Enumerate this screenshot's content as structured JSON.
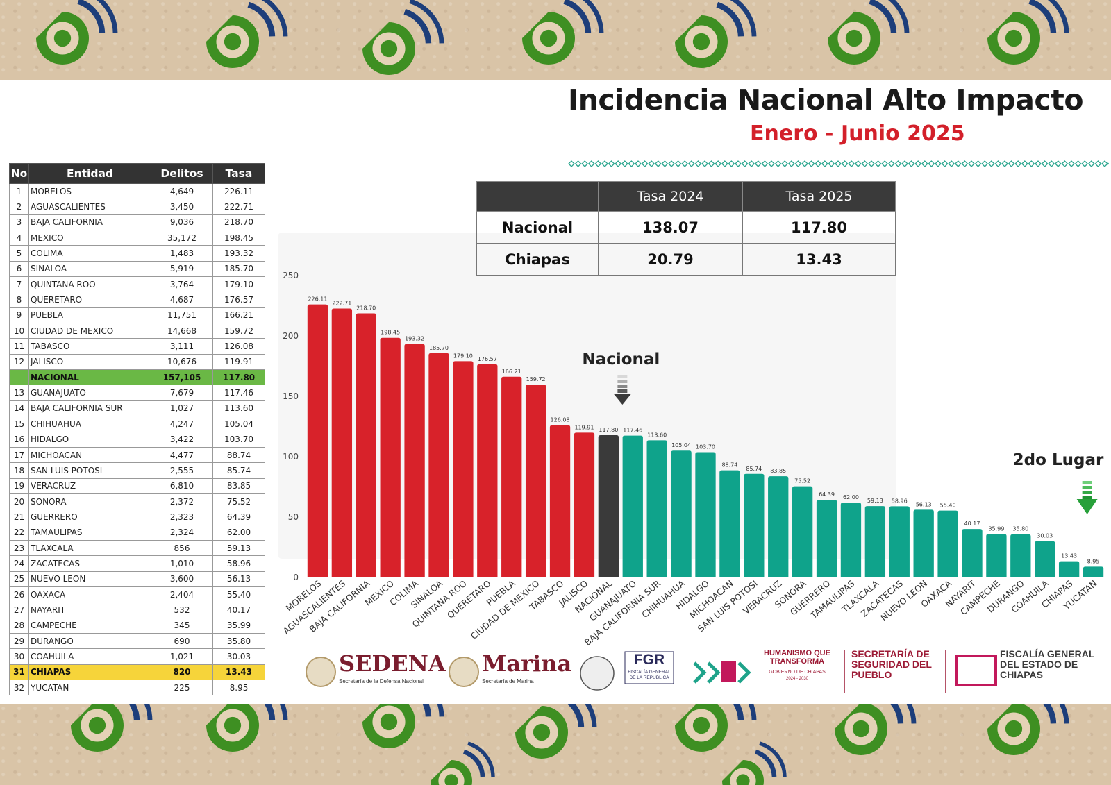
{
  "header": {
    "title": "Incidencia Nacional Alto Impacto",
    "subtitle": "Enero - Junio 2025"
  },
  "ranking_table": {
    "headers": [
      "No",
      "Entidad",
      "Delitos",
      "Tasa"
    ],
    "rows": [
      {
        "no": "1",
        "entidad": "MORELOS",
        "delitos": "4,649",
        "tasa": "226.11"
      },
      {
        "no": "2",
        "entidad": "AGUASCALIENTES",
        "delitos": "3,450",
        "tasa": "222.71"
      },
      {
        "no": "3",
        "entidad": "BAJA CALIFORNIA",
        "delitos": "9,036",
        "tasa": "218.70"
      },
      {
        "no": "4",
        "entidad": "MEXICO",
        "delitos": "35,172",
        "tasa": "198.45"
      },
      {
        "no": "5",
        "entidad": "COLIMA",
        "delitos": "1,483",
        "tasa": "193.32"
      },
      {
        "no": "6",
        "entidad": "SINALOA",
        "delitos": "5,919",
        "tasa": "185.70"
      },
      {
        "no": "7",
        "entidad": "QUINTANA ROO",
        "delitos": "3,764",
        "tasa": "179.10"
      },
      {
        "no": "8",
        "entidad": "QUERETARO",
        "delitos": "4,687",
        "tasa": "176.57"
      },
      {
        "no": "9",
        "entidad": "PUEBLA",
        "delitos": "11,751",
        "tasa": "166.21"
      },
      {
        "no": "10",
        "entidad": "CIUDAD DE MEXICO",
        "delitos": "14,668",
        "tasa": "159.72"
      },
      {
        "no": "11",
        "entidad": "TABASCO",
        "delitos": "3,111",
        "tasa": "126.08"
      },
      {
        "no": "12",
        "entidad": "JALISCO",
        "delitos": "10,676",
        "tasa": "119.91"
      },
      {
        "no": "",
        "entidad": "NACIONAL",
        "delitos": "157,105",
        "tasa": "117.80",
        "highlight": "nacional"
      },
      {
        "no": "13",
        "entidad": "GUANAJUATO",
        "delitos": "7,679",
        "tasa": "117.46"
      },
      {
        "no": "14",
        "entidad": "BAJA CALIFORNIA SUR",
        "delitos": "1,027",
        "tasa": "113.60"
      },
      {
        "no": "15",
        "entidad": "CHIHUAHUA",
        "delitos": "4,247",
        "tasa": "105.04"
      },
      {
        "no": "16",
        "entidad": "HIDALGO",
        "delitos": "3,422",
        "tasa": "103.70"
      },
      {
        "no": "17",
        "entidad": "MICHOACAN",
        "delitos": "4,477",
        "tasa": "88.74"
      },
      {
        "no": "18",
        "entidad": "SAN LUIS POTOSI",
        "delitos": "2,555",
        "tasa": "85.74"
      },
      {
        "no": "19",
        "entidad": "VERACRUZ",
        "delitos": "6,810",
        "tasa": "83.85"
      },
      {
        "no": "20",
        "entidad": "SONORA",
        "delitos": "2,372",
        "tasa": "75.52"
      },
      {
        "no": "21",
        "entidad": "GUERRERO",
        "delitos": "2,323",
        "tasa": "64.39"
      },
      {
        "no": "22",
        "entidad": "TAMAULIPAS",
        "delitos": "2,324",
        "tasa": "62.00"
      },
      {
        "no": "23",
        "entidad": "TLAXCALA",
        "delitos": "856",
        "tasa": "59.13"
      },
      {
        "no": "24",
        "entidad": "ZACATECAS",
        "delitos": "1,010",
        "tasa": "58.96"
      },
      {
        "no": "25",
        "entidad": "NUEVO LEON",
        "delitos": "3,600",
        "tasa": "56.13"
      },
      {
        "no": "26",
        "entidad": "OAXACA",
        "delitos": "2,404",
        "tasa": "55.40"
      },
      {
        "no": "27",
        "entidad": "NAYARIT",
        "delitos": "532",
        "tasa": "40.17"
      },
      {
        "no": "28",
        "entidad": "CAMPECHE",
        "delitos": "345",
        "tasa": "35.99"
      },
      {
        "no": "29",
        "entidad": "DURANGO",
        "delitos": "690",
        "tasa": "35.80"
      },
      {
        "no": "30",
        "entidad": "COAHUILA",
        "delitos": "1,021",
        "tasa": "30.03"
      },
      {
        "no": "31",
        "entidad": "CHIAPAS",
        "delitos": "820",
        "tasa": "13.43",
        "highlight": "chiapas"
      },
      {
        "no": "32",
        "entidad": "YUCATAN",
        "delitos": "225",
        "tasa": "8.95"
      }
    ]
  },
  "comparison_table": {
    "headers": [
      "",
      "Tasa 2024",
      "Tasa 2025"
    ],
    "rows": [
      {
        "label": "Nacional",
        "t2024": "138.07",
        "t2025": "117.80"
      },
      {
        "label": "Chiapas",
        "t2024": "20.79",
        "t2025": "13.43"
      }
    ]
  },
  "chart_data": {
    "type": "bar",
    "ylim": [
      0,
      250
    ],
    "yticks": [
      0,
      50,
      100,
      150,
      200,
      250
    ],
    "categories": [
      "MORELOS",
      "AGUASCALIENTES",
      "BAJA CALIFORNIA",
      "MEXICO",
      "COLIMA",
      "SINALOA",
      "QUINTANA ROO",
      "QUERETARO",
      "PUEBLA",
      "CIUDAD DE MEXICO",
      "TABASCO",
      "JALISCO",
      "NACIONAL",
      "GUANAJUATO",
      "BAJA CALIFORNIA SUR",
      "CHIHUAHUA",
      "HIDALGO",
      "MICHOACAN",
      "SAN LUIS POTOSI",
      "VERACRUZ",
      "SONORA",
      "GUERRERO",
      "TAMAULIPAS",
      "TLAXCALA",
      "ZACATECAS",
      "NUEVO LEON",
      "OAXACA",
      "NAYARIT",
      "CAMPECHE",
      "DURANGO",
      "COAHUILA",
      "CHIAPAS",
      "YUCATAN"
    ],
    "values": [
      226.11,
      222.71,
      218.7,
      198.45,
      193.32,
      185.7,
      179.1,
      176.57,
      166.21,
      159.72,
      126.08,
      119.91,
      117.8,
      117.46,
      113.6,
      105.04,
      103.7,
      88.74,
      85.74,
      83.85,
      75.52,
      64.39,
      62.0,
      59.13,
      58.96,
      56.13,
      55.4,
      40.17,
      35.99,
      35.8,
      30.03,
      13.43,
      8.95
    ],
    "value_labels": [
      "226.11",
      "222.71",
      "218.70",
      "198.45",
      "193.32",
      "185.70",
      "179.10",
      "176.57",
      "166.21",
      "159.72",
      "126.08",
      "119.91",
      "117.80",
      "117.46",
      "113.60",
      "105.04",
      "103.70",
      "88.74",
      "85.74",
      "83.85",
      "75.52",
      "64.39",
      "62.00",
      "59.13",
      "58.96",
      "56.13",
      "55.40",
      "40.17",
      "35.99",
      "35.80",
      "30.03",
      "13.43",
      "8.95"
    ],
    "colors": {
      "above": "#d8222a",
      "national": "#3a3a3a",
      "below": "#0fa38b"
    },
    "annotations": {
      "national": "Nacional",
      "chiapas": "2do Lugar"
    },
    "grid": false,
    "legend": "none"
  },
  "logos": {
    "sedena": "SEDENA",
    "sedena_sub": "Secretaría de la Defensa Nacional",
    "marina": "Marina",
    "marina_sub": "Secretaría de Marina",
    "fgr": "FGR",
    "fgr_sub": "FISCALÍA GENERAL DE LA REPÚBLICA",
    "humanismo": "HUMANISMO QUE TRANSFORMA",
    "humanismo_sub": "GOBIERNO DE CHIAPAS",
    "humanismo_years": "2024 - 2030",
    "ssp": "SECRETARÍA DE SEGURIDAD DEL PUEBLO",
    "fge": "FISCALÍA GENERAL DEL ESTADO DE CHIAPAS"
  },
  "colors": {
    "accent_red": "#d3202a",
    "accent_green": "#0fa38b",
    "highlight_green": "#6ab845",
    "highlight_yellow": "#f6d43a"
  }
}
